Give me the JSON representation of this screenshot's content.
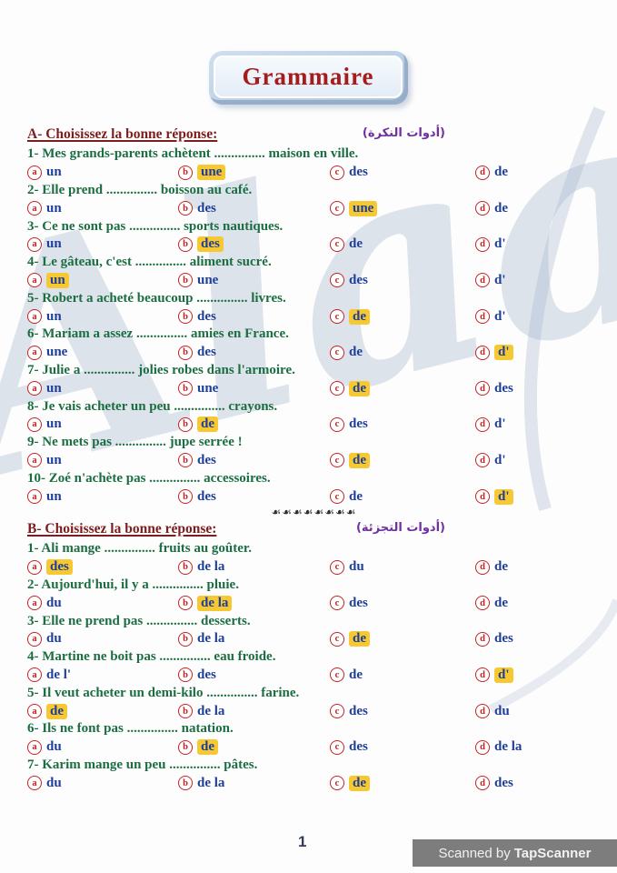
{
  "title": "Grammaire",
  "watermark": "Alaa",
  "divider": "☙☙☙☙☙☙☙☙",
  "page_number": "1",
  "scan_credit": {
    "prefix": "Scanned by",
    "brand": "TapScanner"
  },
  "colors": {
    "question_green": "#1b6e41",
    "header_maroon": "#7d1d1d",
    "option_navy": "#1e3e9c",
    "letter_red": "#c32222",
    "highlight_yellow": "#f6c832",
    "arabic_purple": "#7030a0",
    "title_red": "#a41c1c"
  },
  "sections": [
    {
      "header": "A- Choisissez la bonne réponse:",
      "arabic": "(أدوات النكرة)",
      "questions": [
        {
          "text": "1- Mes grands-parents achètent ............... maison en ville.",
          "options": [
            {
              "letter": "a",
              "label": "un",
              "correct": false
            },
            {
              "letter": "b",
              "label": "une",
              "correct": true
            },
            {
              "letter": "c",
              "label": "des",
              "correct": false
            },
            {
              "letter": "d",
              "label": "de",
              "correct": false
            }
          ]
        },
        {
          "text": "2- Elle prend ............... boisson au café.",
          "options": [
            {
              "letter": "a",
              "label": "un",
              "correct": false
            },
            {
              "letter": "b",
              "label": "des",
              "correct": false
            },
            {
              "letter": "c",
              "label": "une",
              "correct": true
            },
            {
              "letter": "d",
              "label": "de",
              "correct": false
            }
          ]
        },
        {
          "text": "3- Ce ne sont pas ............... sports nautiques.",
          "options": [
            {
              "letter": "a",
              "label": "un",
              "correct": false
            },
            {
              "letter": "b",
              "label": "des",
              "correct": true
            },
            {
              "letter": "c",
              "label": "de",
              "correct": false
            },
            {
              "letter": "d",
              "label": "d'",
              "correct": false
            }
          ]
        },
        {
          "text": "4- Le gâteau, c'est ............... aliment sucré.",
          "options": [
            {
              "letter": "a",
              "label": "un",
              "correct": true
            },
            {
              "letter": "b",
              "label": "une",
              "correct": false
            },
            {
              "letter": "c",
              "label": "des",
              "correct": false
            },
            {
              "letter": "d",
              "label": "d'",
              "correct": false
            }
          ]
        },
        {
          "text": "5- Robert a acheté beaucoup ............... livres.",
          "options": [
            {
              "letter": "a",
              "label": "un",
              "correct": false
            },
            {
              "letter": "b",
              "label": "des",
              "correct": false
            },
            {
              "letter": "c",
              "label": "de",
              "correct": true
            },
            {
              "letter": "d",
              "label": "d'",
              "correct": false
            }
          ]
        },
        {
          "text": "6- Mariam a assez ............... amies en France.",
          "options": [
            {
              "letter": "a",
              "label": "une",
              "correct": false
            },
            {
              "letter": "b",
              "label": "des",
              "correct": false
            },
            {
              "letter": "c",
              "label": "de",
              "correct": false
            },
            {
              "letter": "d",
              "label": "d'",
              "correct": true
            }
          ]
        },
        {
          "text": "7- Julie a ............... jolies robes dans l'armoire.",
          "options": [
            {
              "letter": "a",
              "label": "un",
              "correct": false
            },
            {
              "letter": "b",
              "label": "une",
              "correct": false
            },
            {
              "letter": "c",
              "label": "de",
              "correct": true
            },
            {
              "letter": "d",
              "label": "des",
              "correct": false
            }
          ]
        },
        {
          "text": "8- Je vais acheter un peu ............... crayons.",
          "options": [
            {
              "letter": "a",
              "label": "un",
              "correct": false
            },
            {
              "letter": "b",
              "label": "de",
              "correct": true
            },
            {
              "letter": "c",
              "label": "des",
              "correct": false
            },
            {
              "letter": "d",
              "label": "d'",
              "correct": false
            }
          ]
        },
        {
          "text": "9- Ne mets pas ............... jupe serrée !",
          "options": [
            {
              "letter": "a",
              "label": "un",
              "correct": false
            },
            {
              "letter": "b",
              "label": "des",
              "correct": false
            },
            {
              "letter": "c",
              "label": "de",
              "correct": true
            },
            {
              "letter": "d",
              "label": "d'",
              "correct": false
            }
          ]
        },
        {
          "text": "10- Zoé n'achète pas ............... accessoires.",
          "options": [
            {
              "letter": "a",
              "label": "un",
              "correct": false
            },
            {
              "letter": "b",
              "label": "des",
              "correct": false
            },
            {
              "letter": "c",
              "label": "de",
              "correct": false
            },
            {
              "letter": "d",
              "label": "d'",
              "correct": true
            }
          ]
        }
      ]
    },
    {
      "header": "B- Choisissez la bonne réponse:",
      "arabic": "(أدوات التجزئة)",
      "questions": [
        {
          "text": "1- Ali mange ............... fruits au goûter.",
          "options": [
            {
              "letter": "a",
              "label": "des",
              "correct": true
            },
            {
              "letter": "b",
              "label": "de la",
              "correct": false
            },
            {
              "letter": "c",
              "label": "du",
              "correct": false
            },
            {
              "letter": "d",
              "label": "de",
              "correct": false
            }
          ]
        },
        {
          "text": "2- Aujourd'hui, il y a ............... pluie.",
          "options": [
            {
              "letter": "a",
              "label": "du",
              "correct": false
            },
            {
              "letter": "b",
              "label": "de la",
              "correct": true
            },
            {
              "letter": "c",
              "label": "des",
              "correct": false
            },
            {
              "letter": "d",
              "label": "de",
              "correct": false
            }
          ]
        },
        {
          "text": "3- Elle ne prend pas ............... desserts.",
          "options": [
            {
              "letter": "a",
              "label": "du",
              "correct": false
            },
            {
              "letter": "b",
              "label": "de la",
              "correct": false
            },
            {
              "letter": "c",
              "label": "de",
              "correct": true
            },
            {
              "letter": "d",
              "label": "des",
              "correct": false
            }
          ]
        },
        {
          "text": "4- Martine ne boit pas ............... eau froide.",
          "options": [
            {
              "letter": "a",
              "label": "de l'",
              "correct": false
            },
            {
              "letter": "b",
              "label": "des",
              "correct": false
            },
            {
              "letter": "c",
              "label": "de",
              "correct": false
            },
            {
              "letter": "d",
              "label": "d'",
              "correct": true
            }
          ]
        },
        {
          "text": "5- Il veut acheter un demi-kilo ............... farine.",
          "options": [
            {
              "letter": "a",
              "label": "de",
              "correct": true
            },
            {
              "letter": "b",
              "label": "de la",
              "correct": false
            },
            {
              "letter": "c",
              "label": "des",
              "correct": false
            },
            {
              "letter": "d",
              "label": "du",
              "correct": false
            }
          ]
        },
        {
          "text": "6- Ils ne font pas ............... natation.",
          "options": [
            {
              "letter": "a",
              "label": "du",
              "correct": false
            },
            {
              "letter": "b",
              "label": "de",
              "correct": true
            },
            {
              "letter": "c",
              "label": "des",
              "correct": false
            },
            {
              "letter": "d",
              "label": "de la",
              "correct": false
            }
          ]
        },
        {
          "text": "7- Karim mange un peu ............... pâtes.",
          "options": [
            {
              "letter": "a",
              "label": "du",
              "correct": false
            },
            {
              "letter": "b",
              "label": "de la",
              "correct": false
            },
            {
              "letter": "c",
              "label": "de",
              "correct": true
            },
            {
              "letter": "d",
              "label": "des",
              "correct": false
            }
          ]
        }
      ]
    }
  ]
}
